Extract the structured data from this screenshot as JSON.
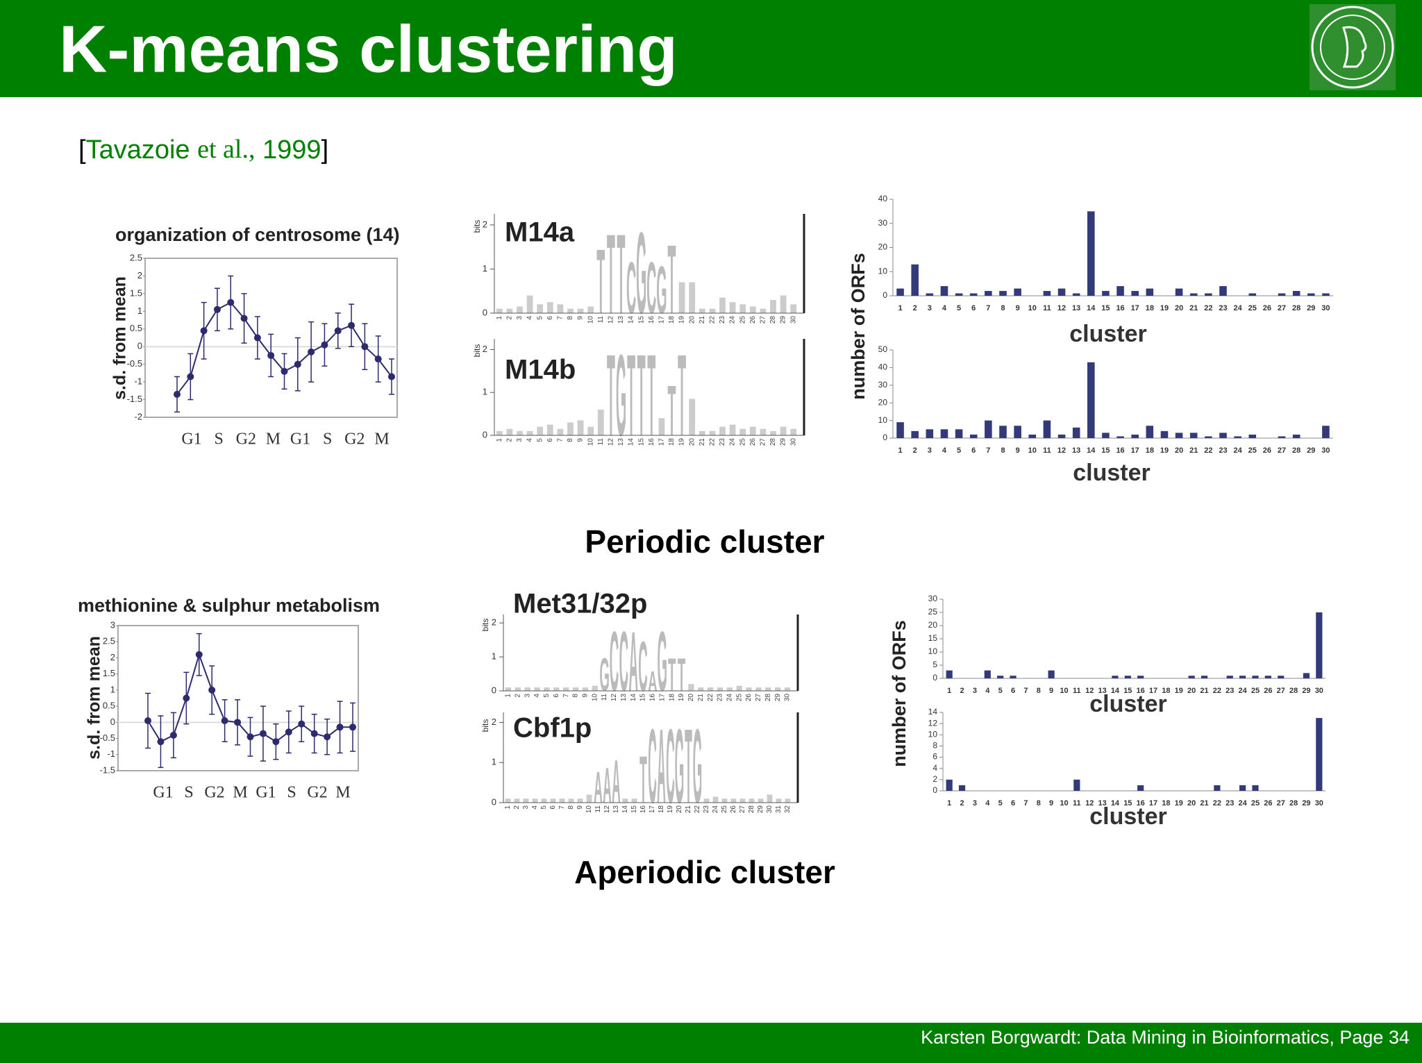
{
  "header": {
    "title": "K-means clustering"
  },
  "citation": {
    "open": "[",
    "author": "Tavazoie",
    "etal": "et al.,",
    "year": "1999",
    "close": "]"
  },
  "captions": [
    "Periodic cluster",
    "Aperiodic cluster"
  ],
  "footer": "Karsten Borgwardt: Data Mining in Bioinformatics, Page 34",
  "chart_data": [
    {
      "type": "line",
      "title": "organization of centrosome (14)",
      "y_label": "s.d. from mean",
      "x_labels": [
        "G1",
        "S",
        "G2",
        "M",
        "G1",
        "S",
        "G2",
        "M"
      ],
      "values": [
        -1.35,
        -0.85,
        0.45,
        1.05,
        1.25,
        0.8,
        0.25,
        -0.25,
        -0.7,
        -0.5,
        -0.15,
        0.05,
        0.45,
        0.6,
        0.0,
        -0.35,
        -0.85
      ],
      "errors": [
        0.5,
        0.65,
        0.8,
        0.6,
        0.75,
        0.7,
        0.6,
        0.6,
        0.5,
        0.75,
        0.85,
        0.6,
        0.5,
        0.6,
        0.65,
        0.65,
        0.5
      ],
      "color": "#2e2a6e",
      "ylim": [
        -2,
        2.5
      ],
      "yticks": [
        2.5,
        2,
        1.5,
        1,
        0.5,
        0,
        -0.5,
        -1,
        -1.5,
        -2
      ]
    },
    {
      "type": "logo",
      "title": "M14a",
      "y_label": "bits",
      "ylim": [
        0,
        2.25
      ],
      "yticks": [
        0,
        1,
        2
      ],
      "positions": [
        1,
        2,
        3,
        4,
        5,
        6,
        7,
        8,
        9,
        10,
        11,
        12,
        13,
        14,
        15,
        16,
        17,
        18,
        19,
        20,
        21,
        22,
        23,
        24,
        25,
        26,
        27,
        28,
        29,
        30
      ],
      "values": [
        0.1,
        0.1,
        0.15,
        0.4,
        0.2,
        0.25,
        0.2,
        0.1,
        0.1,
        0.15,
        1.5,
        1.85,
        1.85,
        1.2,
        1.9,
        1.2,
        1.1,
        1.6,
        0.7,
        0.7,
        0.1,
        0.1,
        0.35,
        0.25,
        0.2,
        0.15,
        0.1,
        0.3,
        0.4,
        0.2
      ],
      "letters": [
        null,
        null,
        null,
        null,
        null,
        null,
        null,
        null,
        null,
        null,
        "T",
        "T",
        "T",
        "C",
        "G",
        "C",
        "G",
        "T",
        null,
        null,
        null,
        null,
        null,
        null,
        null,
        null,
        null,
        null,
        null,
        null
      ]
    },
    {
      "type": "logo",
      "title": "M14b",
      "y_label": "bits",
      "ylim": [
        0,
        2.25
      ],
      "yticks": [
        0,
        1,
        2
      ],
      "positions": [
        1,
        2,
        3,
        4,
        5,
        6,
        7,
        8,
        9,
        10,
        11,
        12,
        13,
        14,
        15,
        16,
        17,
        18,
        19,
        20,
        21,
        22,
        23,
        24,
        25,
        26,
        27,
        28,
        29,
        30
      ],
      "values": [
        0.1,
        0.15,
        0.1,
        0.1,
        0.2,
        0.25,
        0.15,
        0.3,
        0.35,
        0.2,
        0.6,
        1.95,
        1.95,
        1.95,
        1.95,
        1.95,
        0.4,
        1.2,
        1.95,
        0.85,
        0.1,
        0.1,
        0.2,
        0.25,
        0.15,
        0.2,
        0.15,
        0.1,
        0.2,
        0.15
      ],
      "letters": [
        null,
        null,
        null,
        null,
        null,
        null,
        null,
        null,
        null,
        null,
        null,
        "T",
        "G",
        "T",
        "T",
        "T",
        null,
        "T",
        "T",
        null,
        null,
        null,
        null,
        null,
        null,
        null,
        null,
        null,
        null,
        null
      ]
    },
    {
      "type": "bar",
      "y_label": "number of ORFs",
      "x_label": "cluster",
      "color": "#333a7a",
      "categories": [
        1,
        2,
        3,
        4,
        5,
        6,
        7,
        8,
        9,
        10,
        11,
        12,
        13,
        14,
        15,
        16,
        17,
        18,
        19,
        20,
        21,
        22,
        23,
        24,
        25,
        26,
        27,
        28,
        29,
        30
      ],
      "values": [
        3,
        13,
        1,
        4,
        1,
        1,
        2,
        2,
        3,
        0,
        2,
        3,
        1,
        35,
        2,
        4,
        2,
        3,
        0,
        3,
        1,
        1,
        4,
        0,
        1,
        0,
        1,
        2,
        1,
        1
      ],
      "ylim": [
        0,
        40
      ],
      "yticks": [
        0,
        10,
        20,
        30,
        40
      ]
    },
    {
      "type": "bar",
      "x_label": "cluster",
      "color": "#333a7a",
      "categories": [
        1,
        2,
        3,
        4,
        5,
        6,
        7,
        8,
        9,
        10,
        11,
        12,
        13,
        14,
        15,
        16,
        17,
        18,
        19,
        20,
        21,
        22,
        23,
        24,
        25,
        26,
        27,
        28,
        29,
        30
      ],
      "values": [
        9,
        4,
        5,
        5,
        5,
        2,
        10,
        7,
        7,
        2,
        10,
        2,
        6,
        43,
        3,
        1,
        2,
        7,
        4,
        3,
        3,
        1,
        3,
        1,
        2,
        0,
        1,
        2,
        0,
        7
      ],
      "ylim": [
        0,
        50
      ],
      "yticks": [
        0,
        10,
        20,
        30,
        40,
        50
      ]
    },
    {
      "type": "line",
      "title": "methionine & sulphur metabolism",
      "y_label": "s.d. from mean",
      "x_labels": [
        "G1",
        "S",
        "G2",
        "M",
        "G1",
        "S",
        "G2",
        "M"
      ],
      "values": [
        0.05,
        -0.6,
        -0.4,
        0.75,
        2.1,
        1.0,
        0.05,
        0.0,
        -0.45,
        -0.35,
        -0.6,
        -0.3,
        -0.05,
        -0.35,
        -0.45,
        -0.15,
        -0.15
      ],
      "errors": [
        0.85,
        0.8,
        0.7,
        0.8,
        0.65,
        0.75,
        0.65,
        0.7,
        0.6,
        0.85,
        0.55,
        0.65,
        0.55,
        0.6,
        0.55,
        0.8,
        0.75
      ],
      "color": "#2e2a6e",
      "ylim": [
        -1.5,
        3
      ],
      "yticks": [
        3,
        2.5,
        2,
        1.5,
        1,
        0.5,
        0,
        -0.5,
        -1,
        -1.5
      ]
    },
    {
      "type": "logo",
      "title": "Met31/32p",
      "y_label": "bits",
      "ylim": [
        0,
        2.25
      ],
      "yticks": [
        0,
        1,
        2
      ],
      "positions": [
        1,
        2,
        3,
        4,
        5,
        6,
        7,
        8,
        9,
        10,
        11,
        12,
        13,
        14,
        15,
        16,
        17,
        18,
        19,
        20,
        21,
        22,
        23,
        24,
        25,
        26,
        27,
        28,
        29,
        30
      ],
      "values": [
        0.1,
        0.1,
        0.1,
        0.1,
        0.1,
        0.1,
        0.1,
        0.1,
        0.1,
        0.15,
        1.0,
        1.8,
        1.8,
        1.8,
        1.5,
        0.6,
        1.8,
        1.0,
        1.0,
        0.2,
        0.1,
        0.1,
        0.1,
        0.1,
        0.15,
        0.1,
        0.1,
        0.1,
        0.1,
        0.1
      ],
      "letters": [
        null,
        null,
        null,
        null,
        null,
        null,
        null,
        null,
        null,
        null,
        "G",
        "C",
        "C",
        "A",
        "C",
        "A",
        "G",
        "T",
        "T",
        null,
        null,
        null,
        null,
        null,
        null,
        null,
        null,
        null,
        null,
        null
      ]
    },
    {
      "type": "logo",
      "title": "Cbf1p",
      "y_label": "bits",
      "ylim": [
        0,
        2.25
      ],
      "yticks": [
        0,
        1,
        2
      ],
      "positions": [
        1,
        2,
        3,
        4,
        5,
        6,
        7,
        8,
        9,
        10,
        11,
        12,
        13,
        14,
        15,
        16,
        17,
        18,
        19,
        20,
        21,
        22,
        23,
        24,
        25,
        26,
        27,
        28,
        29,
        30,
        31,
        32
      ],
      "values": [
        0.1,
        0.1,
        0.1,
        0.1,
        0.1,
        0.1,
        0.1,
        0.1,
        0.1,
        0.2,
        0.8,
        0.9,
        1.1,
        0.1,
        0.1,
        1.2,
        1.9,
        1.9,
        1.9,
        1.9,
        1.9,
        1.9,
        0.1,
        0.15,
        0.1,
        0.1,
        0.1,
        0.1,
        0.1,
        0.2,
        0.1,
        0.1
      ],
      "letters": [
        null,
        null,
        null,
        null,
        null,
        null,
        null,
        null,
        null,
        null,
        "A",
        "A",
        "A",
        null,
        null,
        "T",
        "C",
        "A",
        "C",
        "G",
        "T",
        "G",
        null,
        null,
        null,
        null,
        null,
        null,
        null,
        null,
        null,
        null
      ]
    },
    {
      "type": "bar",
      "y_label": "number of ORFs",
      "x_label": "cluster",
      "color": "#333a7a",
      "categories": [
        1,
        2,
        3,
        4,
        5,
        6,
        7,
        8,
        9,
        10,
        11,
        12,
        13,
        14,
        15,
        16,
        17,
        18,
        19,
        20,
        21,
        22,
        23,
        24,
        25,
        26,
        27,
        28,
        29,
        30
      ],
      "values": [
        3,
        0,
        0,
        3,
        1,
        1,
        0,
        0,
        3,
        0,
        0,
        0,
        0,
        1,
        1,
        1,
        0,
        0,
        0,
        1,
        1,
        0,
        1,
        1,
        1,
        1,
        1,
        0,
        2,
        25
      ],
      "ylim": [
        0,
        30
      ],
      "yticks": [
        0,
        5,
        10,
        15,
        20,
        25,
        30
      ]
    },
    {
      "type": "bar",
      "x_label": "cluster",
      "color": "#333a7a",
      "categories": [
        1,
        2,
        3,
        4,
        5,
        6,
        7,
        8,
        9,
        10,
        11,
        12,
        13,
        14,
        15,
        16,
        17,
        18,
        19,
        20,
        21,
        22,
        23,
        24,
        25,
        26,
        27,
        28,
        29,
        30
      ],
      "values": [
        2,
        1,
        0,
        0,
        0,
        0,
        0,
        0,
        0,
        0,
        2,
        0,
        0,
        0,
        0,
        1,
        0,
        0,
        0,
        0,
        0,
        1,
        0,
        1,
        1,
        0,
        0,
        0,
        0,
        13
      ],
      "ylim": [
        0,
        14
      ],
      "yticks": [
        0,
        2,
        4,
        6,
        8,
        10,
        12,
        14
      ]
    }
  ]
}
